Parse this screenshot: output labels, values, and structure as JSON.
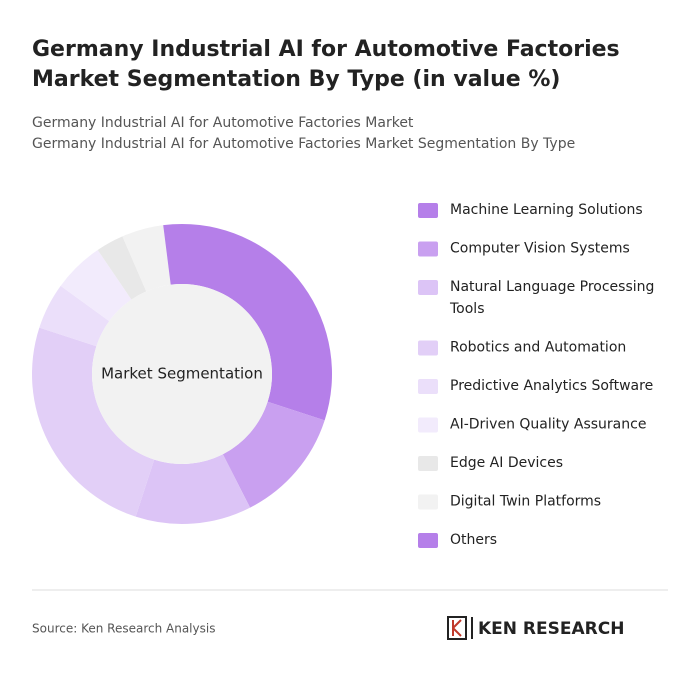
{
  "chart_data": {
    "type": "donut",
    "title": "Germany Industrial AI for Automotive Factories Market Segmentation By Type (in value %)",
    "title_lines": [
      "Germany Industrial AI for Automotive Factories",
      "Market Segmentation By Type (in value %)"
    ],
    "subtitle_lines": [
      "Germany Industrial AI for Automotive Factories Market",
      "Germany Industrial AI for Automotive Factories Market Segmentation By Type"
    ],
    "center_label": "Market Segmentation",
    "categories": [
      "Machine Learning Solutions",
      "Computer Vision Systems",
      "Natural Language Processing Tools",
      "Robotics and Automation",
      "Predictive Analytics Software",
      "AI-Driven Quality Assurance",
      "Edge AI Devices",
      "Digital Twin Platforms",
      "Others"
    ],
    "values": [
      30,
      12.5,
      12.5,
      25,
      5,
      5.5,
      3,
      4.5,
      2
    ],
    "colors": [
      "#b57fe9",
      "#c9a0f0",
      "#dcc4f6",
      "#e2cff7",
      "#ebdffa",
      "#f2ebfc",
      "#e8e8e8",
      "#f2f2f2",
      "#b57fe9"
    ],
    "source": "Source: Ken Research Analysis",
    "brand": "KEN RESEARCH"
  }
}
